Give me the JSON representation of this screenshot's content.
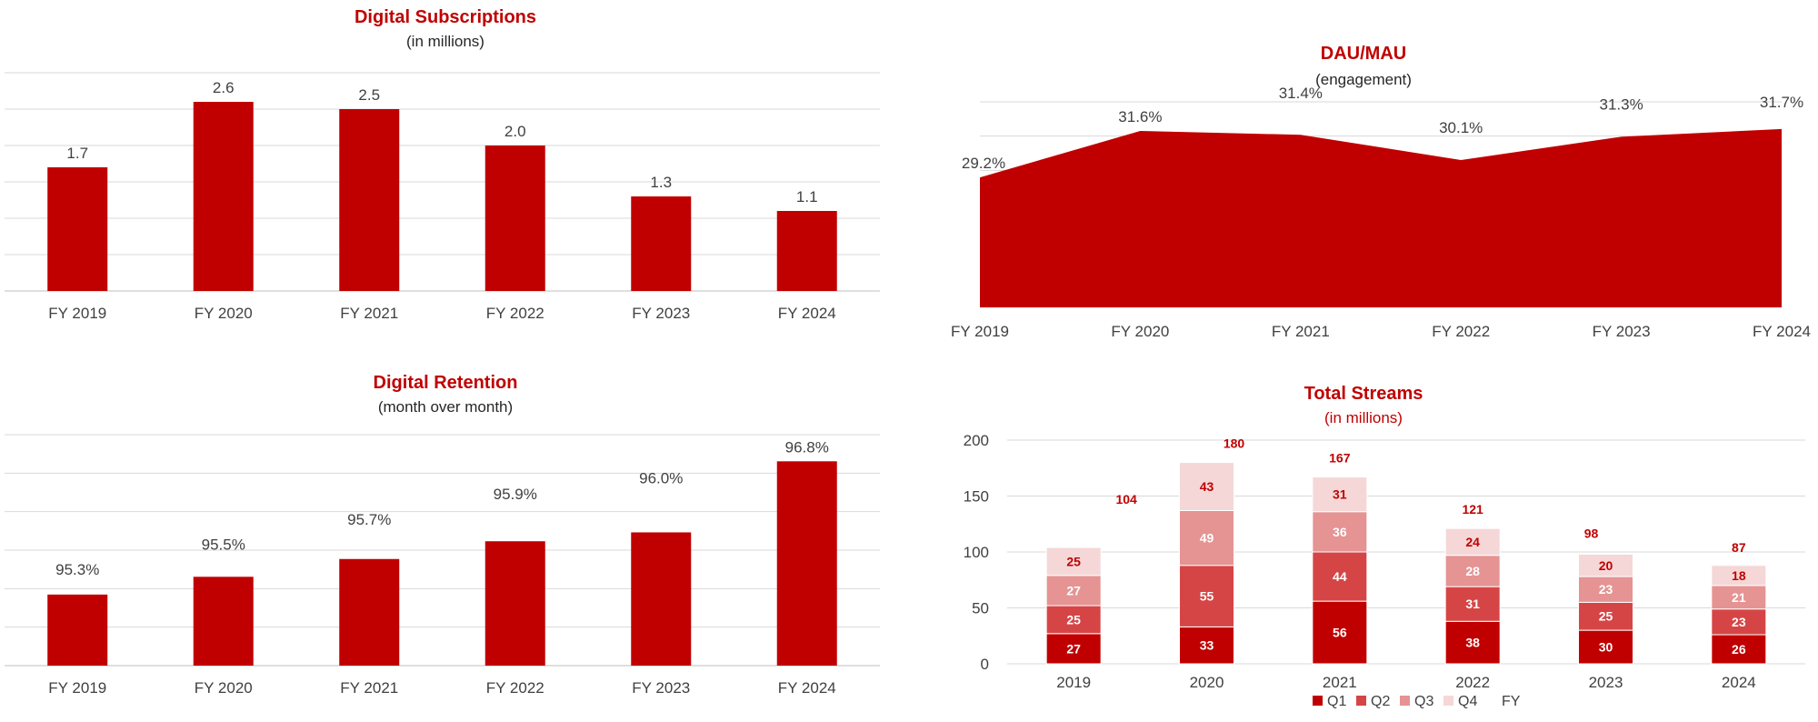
{
  "colors": {
    "bar": "#c00000",
    "grid": "#d9d9d9",
    "axis": "#bfbfbf",
    "label": "#404040",
    "stack_total": "#c00000",
    "q1": "#c00000",
    "q2": "#d64545",
    "q3": "#e59393",
    "q4": "#f5d7d7"
  },
  "chart_data": [
    {
      "id": "subs",
      "type": "bar",
      "title": "Digital Subscriptions",
      "subtitle": "(in millions)",
      "categories": [
        "FY 2019",
        "FY 2020",
        "FY 2021",
        "FY 2022",
        "FY 2023",
        "FY 2024"
      ],
      "values": [
        1.7,
        2.6,
        2.5,
        2.0,
        1.3,
        1.1
      ],
      "labels": [
        "1.7",
        "2.6",
        "2.5",
        "2.0",
        "1.3",
        "1.1"
      ],
      "ylim": [
        0,
        3.0
      ],
      "gridlines": 6,
      "grid": true
    },
    {
      "id": "dau",
      "type": "area",
      "title": "DAU/MAU",
      "subtitle": "(engagement)",
      "categories": [
        "FY 2019",
        "FY 2020",
        "FY 2021",
        "FY 2022",
        "FY 2023",
        "FY 2024"
      ],
      "values": [
        29.2,
        31.6,
        31.4,
        30.1,
        31.3,
        31.7
      ],
      "labels": [
        "29.2%",
        "31.6%",
        "31.4%",
        "30.1%",
        "31.3%",
        "31.7%"
      ],
      "ylim": [
        22.5,
        33.1
      ],
      "gridlines": 6,
      "grid": true
    },
    {
      "id": "ret",
      "type": "bar",
      "title": "Digital Retention",
      "subtitle": "(month over month)",
      "categories": [
        "FY 2019",
        "FY 2020",
        "FY 2021",
        "FY 2022",
        "FY 2023",
        "FY 2024"
      ],
      "values": [
        95.3,
        95.5,
        95.7,
        95.9,
        96.0,
        96.8
      ],
      "labels": [
        "95.3%",
        "95.5%",
        "95.7%",
        "95.9%",
        "96.0%",
        "96.8%"
      ],
      "ylim": [
        94.5,
        97.1
      ],
      "gridlines": 6,
      "grid": true
    },
    {
      "id": "streams",
      "type": "bar",
      "stacked": true,
      "title": "Total Streams",
      "subtitle": "(in millions)",
      "categories": [
        "2019",
        "2020",
        "2021",
        "2022",
        "2023",
        "2024"
      ],
      "series": [
        {
          "name": "Q1",
          "values": [
            27,
            33,
            56,
            38,
            30,
            26
          ]
        },
        {
          "name": "Q2",
          "values": [
            25,
            55,
            44,
            31,
            25,
            23
          ]
        },
        {
          "name": "Q3",
          "values": [
            27,
            49,
            36,
            28,
            23,
            21
          ]
        },
        {
          "name": "Q4",
          "values": [
            25,
            43,
            31,
            24,
            20,
            18
          ]
        }
      ],
      "totals": {
        "name": "FY",
        "values": [
          104,
          180,
          167,
          121,
          98,
          87
        ]
      },
      "yticks": [
        0,
        50,
        100,
        150,
        200
      ],
      "ylim": [
        0,
        200
      ],
      "legend_position": "bottom",
      "grid": true
    }
  ]
}
